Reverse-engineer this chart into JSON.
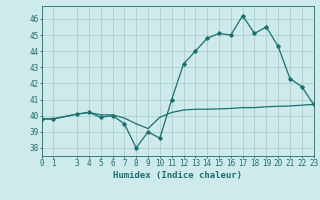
{
  "x": [
    0,
    1,
    3,
    4,
    5,
    6,
    7,
    8,
    9,
    10,
    11,
    12,
    13,
    14,
    15,
    16,
    17,
    18,
    19,
    20,
    21,
    22,
    23
  ],
  "y_main": [
    39.8,
    39.8,
    40.1,
    40.2,
    39.9,
    40.0,
    39.5,
    38.0,
    39.0,
    38.6,
    41.0,
    43.2,
    44.0,
    44.8,
    45.1,
    45.0,
    46.2,
    45.1,
    45.5,
    44.3,
    42.3,
    41.8,
    40.7
  ],
  "y_smooth": [
    39.8,
    39.8,
    40.1,
    40.2,
    40.05,
    40.05,
    39.85,
    39.5,
    39.2,
    39.9,
    40.2,
    40.35,
    40.4,
    40.4,
    40.42,
    40.45,
    40.5,
    40.5,
    40.55,
    40.58,
    40.6,
    40.65,
    40.7
  ],
  "line_color": "#1a7070",
  "bg_color": "#ceeaea",
  "grid_color": "#aacece",
  "xlabel": "Humidex (Indice chaleur)",
  "ylim": [
    37.5,
    46.8
  ],
  "xlim": [
    0,
    23
  ],
  "yticks": [
    38,
    39,
    40,
    41,
    42,
    43,
    44,
    45,
    46
  ],
  "xticks": [
    0,
    1,
    3,
    4,
    5,
    6,
    7,
    8,
    9,
    10,
    11,
    12,
    13,
    14,
    15,
    16,
    17,
    18,
    19,
    20,
    21,
    22,
    23
  ],
  "tick_fontsize": 5.5,
  "label_fontsize": 6.5
}
